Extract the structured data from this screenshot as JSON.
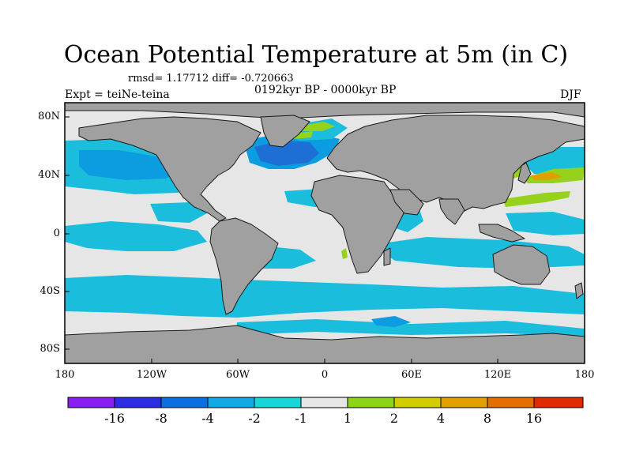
{
  "figure": {
    "title": "Ocean Potential Temperature at 5m (in C)",
    "stats_text": "rmsd= 1.17712 diff= -0.720663",
    "period": "0192kyr BP - 0000kyr BP",
    "experiment": "Expt = teiNe-teina",
    "season": "DJF"
  },
  "map": {
    "projection": "cylindrical equidistant",
    "lon_range": [
      -180,
      180
    ],
    "lat_range": [
      -90,
      90
    ],
    "y_ticks": [
      "80N",
      "40N",
      "0",
      "40S",
      "80S"
    ],
    "x_ticks": [
      "180",
      "120W",
      "60W",
      "0",
      "60E",
      "120E",
      "180"
    ],
    "colors": {
      "land": "#a0a0a0",
      "ocean_neutral": "#e6e6e6",
      "cool_mid": "#1abedc",
      "cool_strong": "#0b9ddf",
      "cool_deep": "#1d6fd6",
      "warm_light": "#96d11c",
      "warm_mid": "#c9d000",
      "warm_strong": "#e2a000"
    }
  },
  "colorbar": {
    "colors": [
      "#8a1ef0",
      "#2c2ce0",
      "#0a6fe0",
      "#10a8e6",
      "#18d6d6",
      "#e6e6e6",
      "#8cd418",
      "#d2cc00",
      "#e3a100",
      "#e56e00",
      "#e02a00"
    ],
    "labels": [
      "-16",
      "-8",
      "-4",
      "-2",
      "-1",
      "1",
      "2",
      "4",
      "8",
      "16"
    ]
  }
}
